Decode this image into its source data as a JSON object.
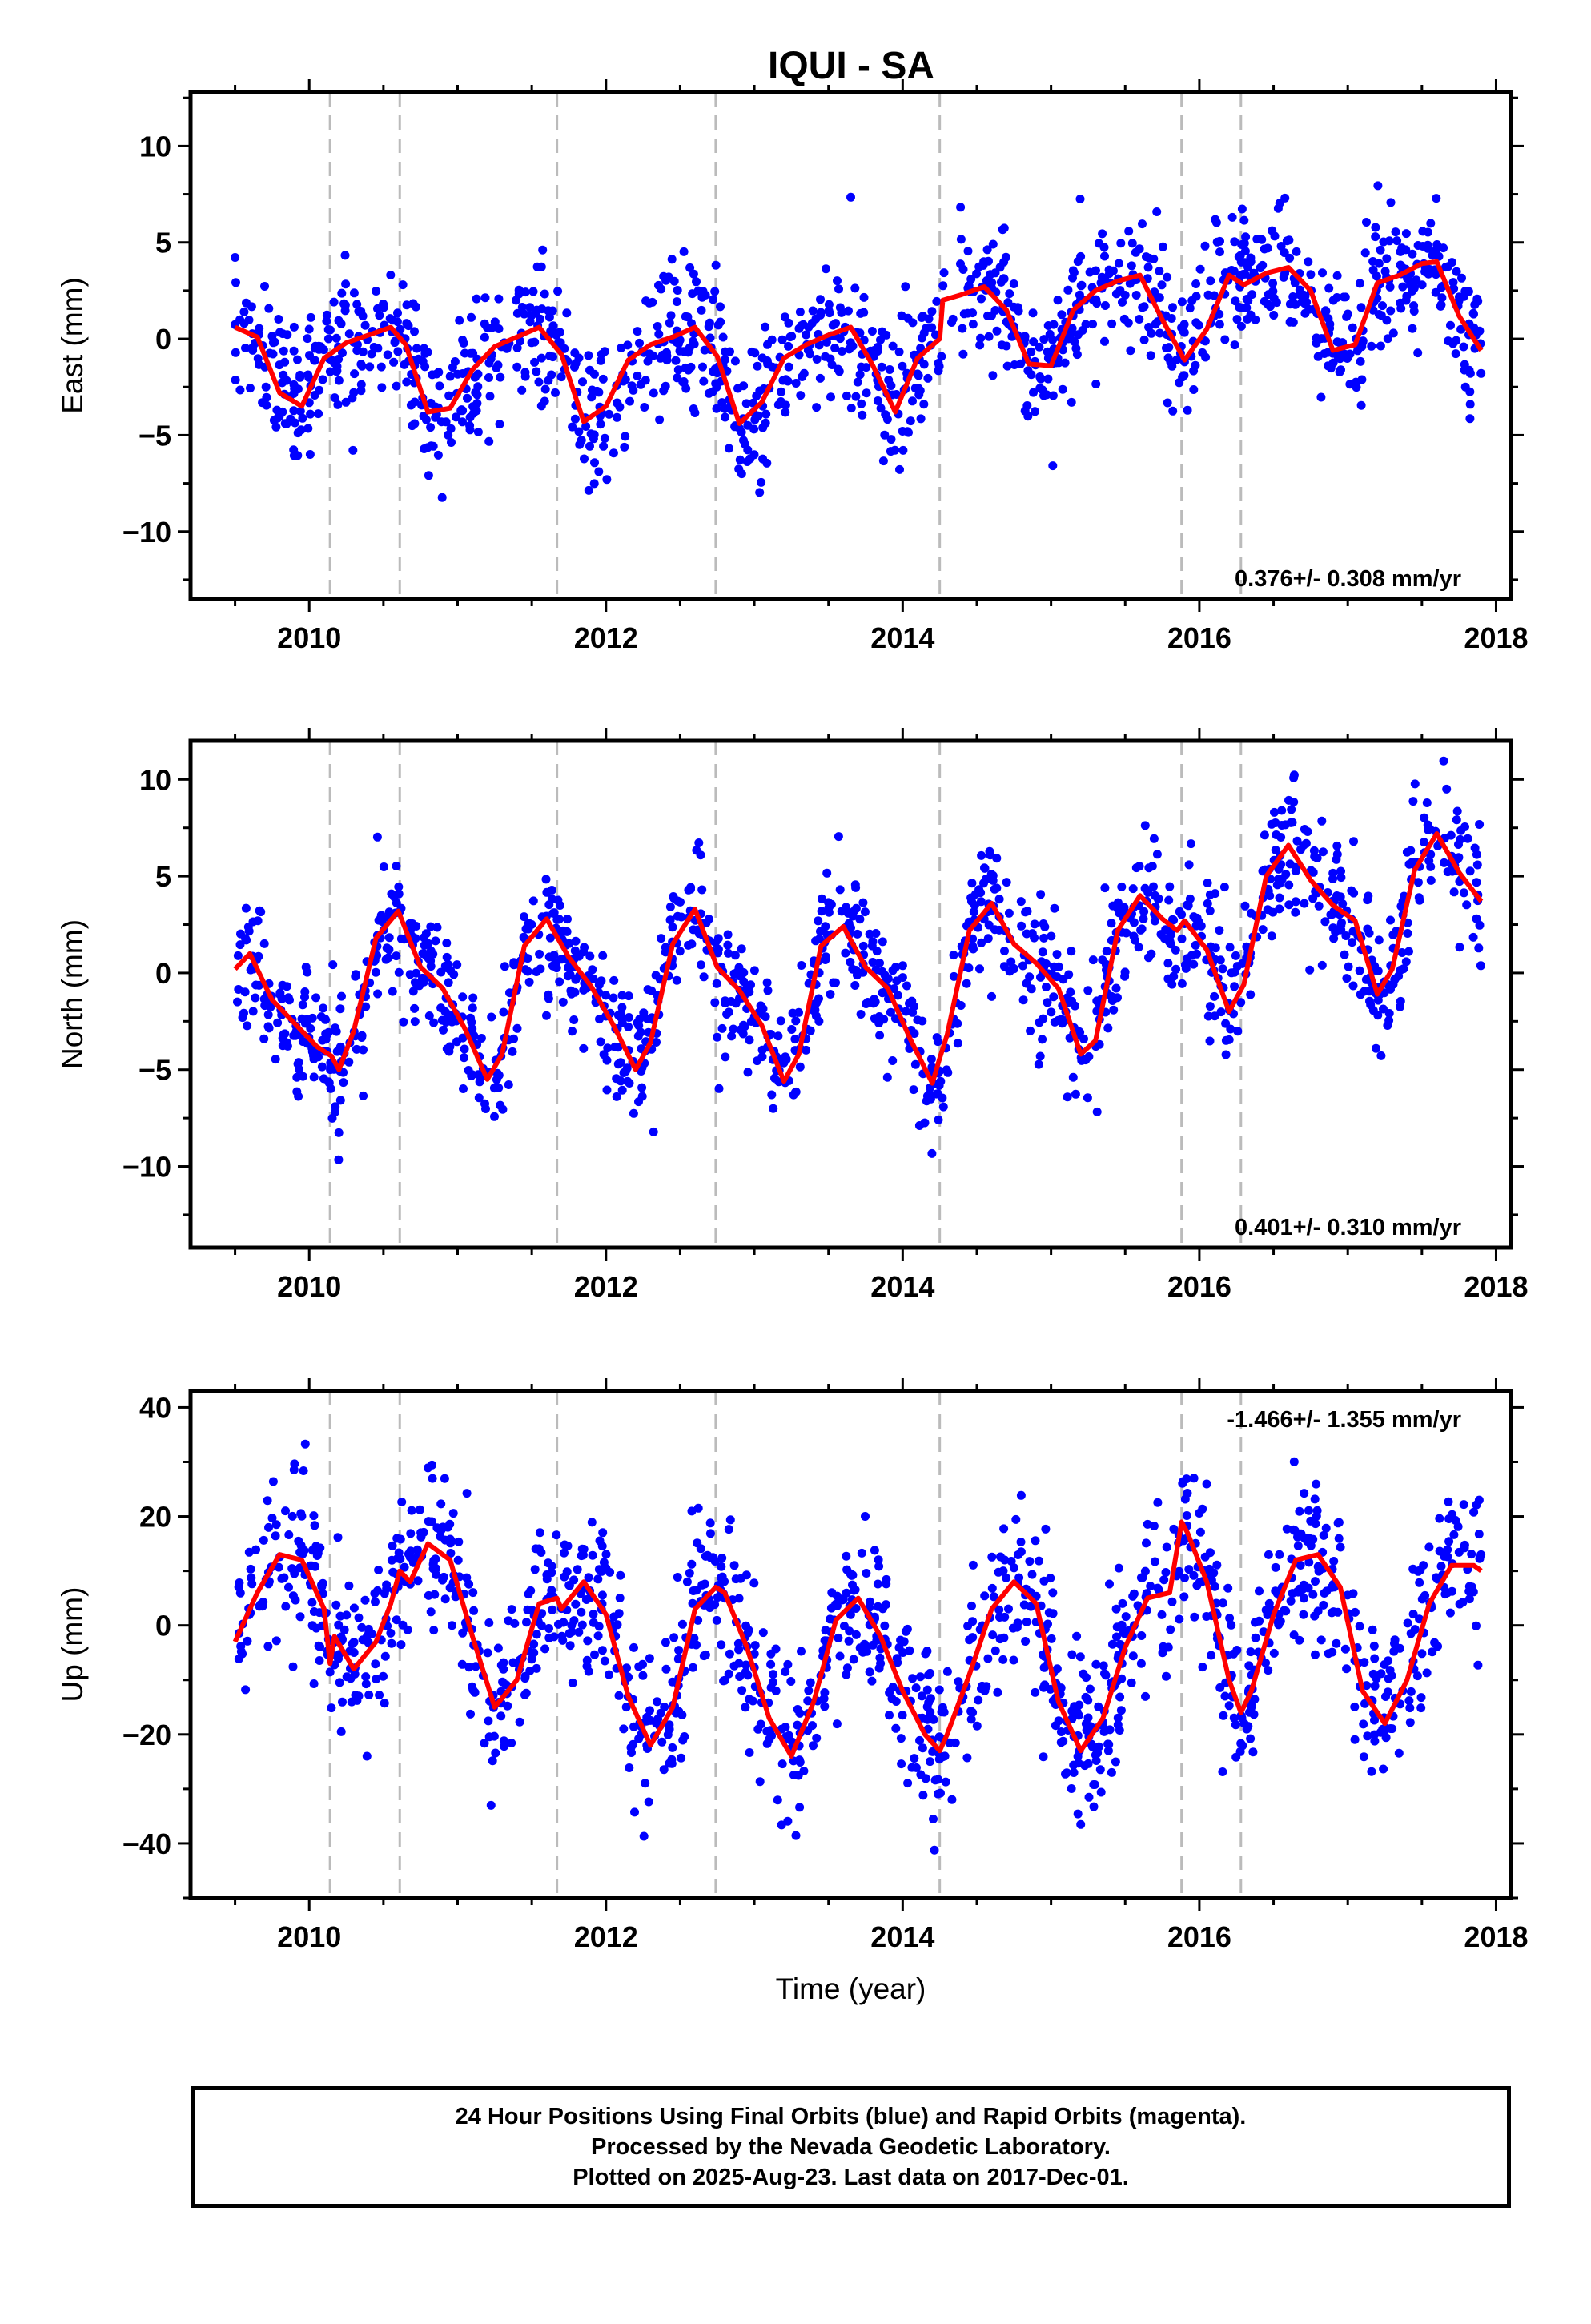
{
  "title": "IQUI - SA",
  "colors": {
    "points": "#0000ff",
    "model": "#ff0000",
    "offsets": "#bbbbbb",
    "axes": "#000000"
  },
  "offsets": [
    2010.14,
    2010.61,
    2011.67,
    2012.74,
    2014.25,
    2015.88,
    2016.28
  ],
  "chart_data": [
    {
      "type": "scatter",
      "name": "east",
      "ylabel": "East (mm)",
      "xlabel": "",
      "xlim": [
        2009.2,
        2018.1
      ],
      "ylim": [
        -13.5,
        12.8
      ],
      "xticks": [
        2010,
        2012,
        2014,
        2016,
        2018
      ],
      "xtick_labels": [
        "2010",
        "2012",
        "2014",
        "2016",
        "2018"
      ],
      "yticks": [
        -10,
        -5,
        0,
        5,
        10
      ],
      "ytick_labels": [
        "−10",
        "−5",
        "0",
        "5",
        "10"
      ],
      "rate": "0.376+/- 0.308 mm/yr",
      "rate_position": "bottom-right",
      "model": {
        "x": [
          2009.5,
          2009.65,
          2009.8,
          2009.95,
          2010.1,
          2010.25,
          2010.4,
          2010.55,
          2010.65,
          2010.8,
          2010.95,
          2011.1,
          2011.25,
          2011.4,
          2011.55,
          2011.7,
          2011.85,
          2012.0,
          2012.15,
          2012.3,
          2012.45,
          2012.6,
          2012.75,
          2012.9,
          2013.05,
          2013.2,
          2013.35,
          2013.5,
          2013.65,
          2013.8,
          2013.95,
          2014.1,
          2014.25,
          2014.27,
          2014.4,
          2014.55,
          2014.7,
          2014.85,
          2015.0,
          2015.15,
          2015.3,
          2015.45,
          2015.6,
          2015.75,
          2015.9,
          2016.05,
          2016.2,
          2016.3,
          2016.45,
          2016.6,
          2016.75,
          2016.9,
          2017.05,
          2017.2,
          2017.35,
          2017.5,
          2017.6,
          2017.75,
          2017.9
        ],
        "y": [
          0.6,
          0.1,
          -2.8,
          -3.5,
          -1.0,
          -0.2,
          0.2,
          0.6,
          -0.3,
          -3.8,
          -3.6,
          -1.6,
          -0.4,
          0.1,
          0.6,
          -0.8,
          -4.3,
          -3.5,
          -1.1,
          -0.3,
          0.1,
          0.6,
          -0.9,
          -4.4,
          -3.3,
          -1.0,
          -0.3,
          0.2,
          0.6,
          -1.4,
          -3.8,
          -1.0,
          0.0,
          2.0,
          2.3,
          2.7,
          1.5,
          -1.3,
          -1.4,
          1.5,
          2.5,
          3.0,
          3.3,
          1.0,
          -1.1,
          0.5,
          3.3,
          2.8,
          3.4,
          3.7,
          2.5,
          -0.6,
          -0.3,
          2.9,
          3.3,
          3.9,
          4.0,
          1.2,
          -0.6
        ]
      },
      "scatter_seed": 11,
      "scatter_spread": 1.8
    },
    {
      "type": "scatter",
      "name": "north",
      "ylabel": "North (mm)",
      "xlabel": "",
      "xlim": [
        2009.2,
        2018.1
      ],
      "ylim": [
        -14.2,
        12.0
      ],
      "xticks": [
        2010,
        2012,
        2014,
        2016,
        2018
      ],
      "xtick_labels": [
        "2010",
        "2012",
        "2014",
        "2016",
        "2018"
      ],
      "yticks": [
        -10,
        -5,
        0,
        5,
        10
      ],
      "ytick_labels": [
        "−10",
        "−5",
        "0",
        "5",
        "10"
      ],
      "rate": "0.401+/- 0.310 mm/yr",
      "rate_position": "bottom-right",
      "model": {
        "x": [
          2009.5,
          2009.6,
          2009.75,
          2009.9,
          2010.05,
          2010.15,
          2010.2,
          2010.3,
          2010.45,
          2010.6,
          2010.75,
          2010.9,
          2011.05,
          2011.2,
          2011.3,
          2011.45,
          2011.6,
          2011.75,
          2011.9,
          2012.05,
          2012.2,
          2012.3,
          2012.45,
          2012.6,
          2012.75,
          2012.9,
          2013.05,
          2013.2,
          2013.3,
          2013.45,
          2013.6,
          2013.75,
          2013.9,
          2014.05,
          2014.2,
          2014.25,
          2014.3,
          2014.45,
          2014.6,
          2014.75,
          2014.9,
          2015.05,
          2015.2,
          2015.3,
          2015.45,
          2015.6,
          2015.75,
          2015.85,
          2015.9,
          2016.05,
          2016.2,
          2016.3,
          2016.45,
          2016.6,
          2016.75,
          2016.9,
          2017.05,
          2017.2,
          2017.3,
          2017.45,
          2017.6,
          2017.75,
          2017.9
        ],
        "y": [
          0.2,
          1.0,
          -1.4,
          -2.6,
          -3.8,
          -4.3,
          -5.0,
          -3.0,
          1.8,
          3.2,
          0.3,
          -0.8,
          -2.9,
          -5.5,
          -4.2,
          1.4,
          2.8,
          0.8,
          -0.7,
          -2.7,
          -5.0,
          -3.6,
          1.5,
          3.3,
          0.3,
          -0.9,
          -2.7,
          -5.6,
          -4.2,
          1.4,
          2.4,
          0.3,
          -0.8,
          -3.4,
          -5.7,
          -4.4,
          -3.2,
          2.2,
          3.6,
          1.5,
          0.5,
          -0.8,
          -4.2,
          -3.5,
          2.2,
          4.0,
          2.8,
          2.2,
          2.7,
          1.2,
          -2.0,
          -0.6,
          5.0,
          6.6,
          4.8,
          3.5,
          2.7,
          -1.1,
          0.2,
          5.3,
          7.2,
          5.2,
          3.7
        ]
      },
      "scatter_seed": 23,
      "scatter_spread": 1.7
    },
    {
      "type": "scatter",
      "name": "up",
      "ylabel": "Up (mm)",
      "xlabel": "Time (year)",
      "xlim": [
        2009.2,
        2018.1
      ],
      "ylim": [
        -50,
        43
      ],
      "xticks": [
        2010,
        2012,
        2014,
        2016,
        2018
      ],
      "xtick_labels": [
        "2010",
        "2012",
        "2014",
        "2016",
        "2018"
      ],
      "yticks": [
        -40,
        -20,
        0,
        20,
        40
      ],
      "ytick_labels": [
        "−40",
        "−20",
        "0",
        "20",
        "40"
      ],
      "rate": "-1.466+/- 1.355 mm/yr",
      "rate_position": "top-right",
      "model": {
        "x": [
          2009.5,
          2009.65,
          2009.8,
          2009.95,
          2010.1,
          2010.14,
          2010.17,
          2010.3,
          2010.45,
          2010.55,
          2010.61,
          2010.68,
          2010.8,
          2010.95,
          2011.1,
          2011.25,
          2011.4,
          2011.55,
          2011.67,
          2011.7,
          2011.85,
          2012.0,
          2012.15,
          2012.3,
          2012.45,
          2012.6,
          2012.74,
          2012.8,
          2012.95,
          2013.1,
          2013.25,
          2013.4,
          2013.55,
          2013.7,
          2013.85,
          2014.0,
          2014.15,
          2014.25,
          2014.3,
          2014.45,
          2014.6,
          2014.75,
          2014.9,
          2015.05,
          2015.2,
          2015.35,
          2015.5,
          2015.65,
          2015.8,
          2015.88,
          2015.92,
          2016.05,
          2016.2,
          2016.28,
          2016.35,
          2016.5,
          2016.65,
          2016.8,
          2016.95,
          2017.1,
          2017.25,
          2017.4,
          2017.55,
          2017.7,
          2017.85,
          2017.9
        ],
        "y": [
          -3,
          6,
          13,
          12,
          3,
          -7,
          -2,
          -8,
          -3,
          4,
          10,
          8,
          15,
          12,
          -2,
          -15,
          -10,
          4,
          5,
          3,
          8,
          2,
          -13,
          -22,
          -15,
          3,
          7,
          6,
          -4,
          -17,
          -24,
          -14,
          1,
          5,
          -2,
          -12,
          -20,
          -23,
          -20,
          -9,
          3,
          8,
          4,
          -14,
          -23,
          -17,
          -4,
          5,
          6,
          19,
          17,
          8,
          -10,
          -16,
          -12,
          2,
          12,
          13,
          7,
          -12,
          -18,
          -10,
          4,
          11,
          11,
          10
        ]
      },
      "scatter_seed": 37,
      "scatter_spread": 7.5
    }
  ],
  "footer": {
    "line1": "24 Hour Positions Using Final Orbits (blue) and Rapid Orbits (magenta).",
    "line2": "Processed by the Nevada Geodetic Laboratory.",
    "line3": "Plotted on 2025-Aug-23. Last data on 2017-Dec-01."
  }
}
